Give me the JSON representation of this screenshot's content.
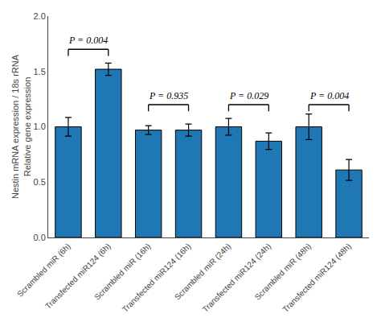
{
  "chart_data": {
    "type": "bar",
    "categories": [
      "Scrambled miR (6h)",
      "Transfected miR124 (6h)",
      "Scrambled miR (16h)",
      "Transfected miR124 (16h)",
      "Scrambled miR (24h)",
      "Transfected miR124 (24h)",
      "Scrambled miR (48h)",
      "Transfected miR124 (48h)"
    ],
    "values": [
      1.0,
      1.52,
      0.97,
      0.97,
      1.0,
      0.87,
      1.0,
      0.61
    ],
    "errors": [
      0.085,
      0.055,
      0.04,
      0.055,
      0.075,
      0.075,
      0.115,
      0.095
    ],
    "ylabel": "Nestin mRNA expression / 18s rRNA\nRelative gene expression",
    "ylim": [
      0.0,
      2.0
    ],
    "yticks": [
      {
        "value": 0.0,
        "label": "0.0"
      },
      0.5,
      {
        "value": 1.0,
        "label": "1.0"
      },
      1.5,
      {
        "value": 2.0,
        "label": "2.0"
      }
    ],
    "grid": false,
    "annotations": [
      {
        "text": "P = 0.004",
        "from": "Scrambled miR (6h)",
        "to": "Transfected miR124 (6h)",
        "y": 1.7
      },
      {
        "text": "P = 0.935",
        "from": "Scrambled miR (16h)",
        "to": "Transfected miR124 (16h)",
        "y": 1.2
      },
      {
        "text": "P = 0.029",
        "from": "Scrambled miR (24h)",
        "to": "Transfected miR124 (24h)",
        "y": 1.2
      },
      {
        "text": "P = 0.004",
        "from": "Scrambled miR (48h)",
        "to": "Transfected miR124 (48h)",
        "y": 1.2
      }
    ]
  }
}
